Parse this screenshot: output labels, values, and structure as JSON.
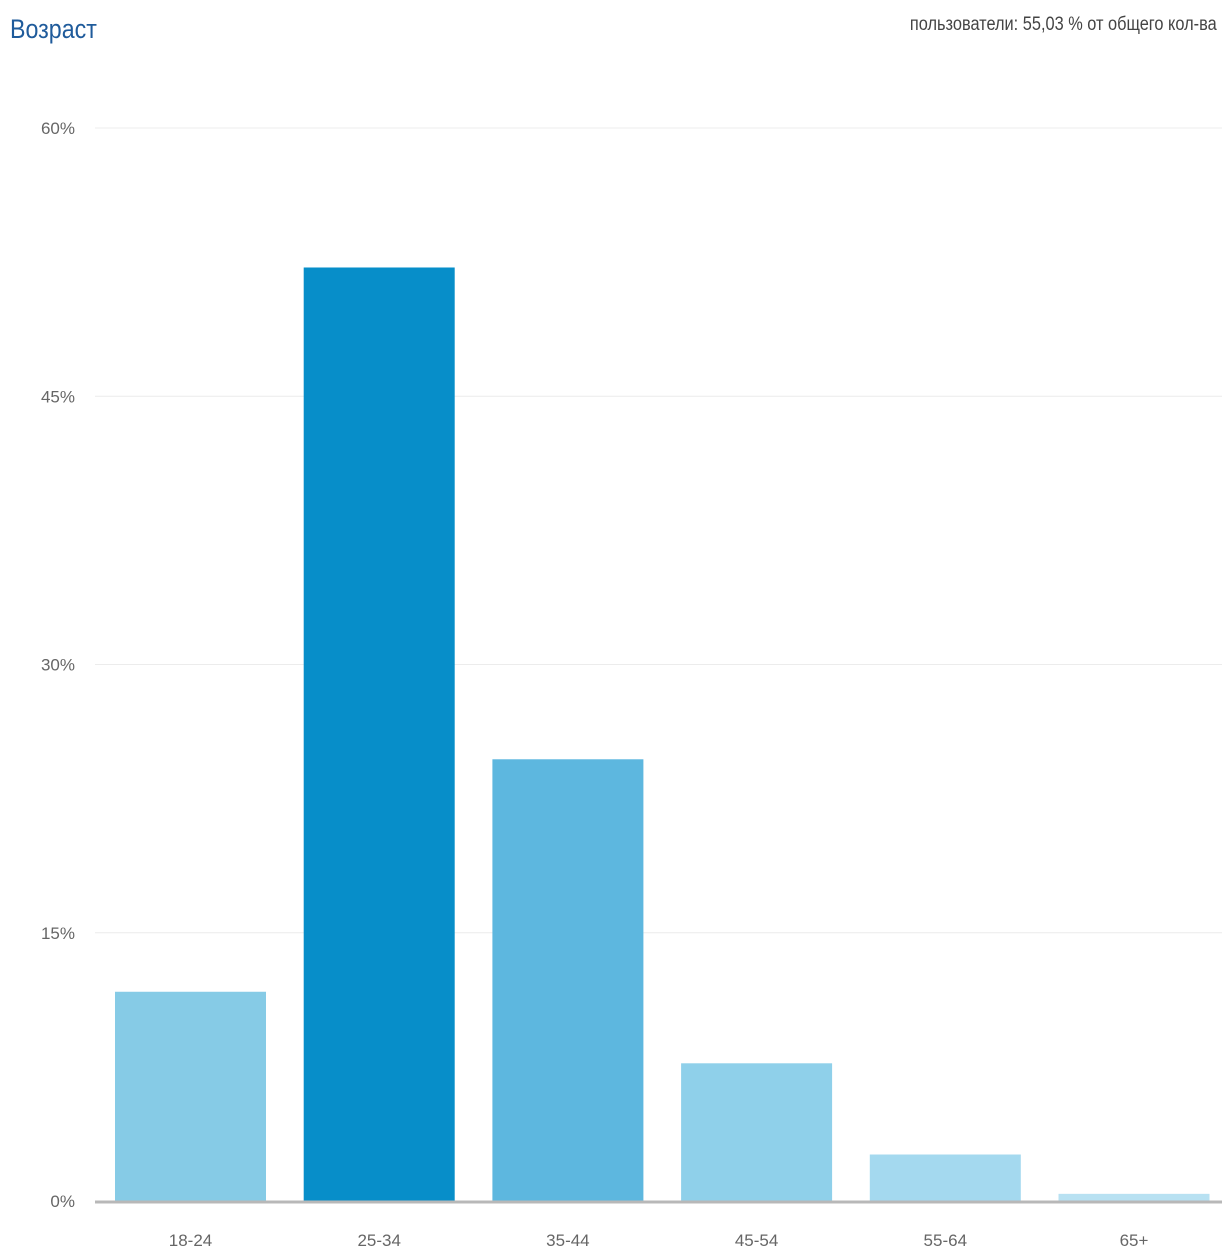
{
  "chart_data": {
    "type": "bar",
    "title": "Возраст",
    "subtitle": "пользователи: 55,03 % от общего кол-ва",
    "categories": [
      "18-24",
      "25-34",
      "35-44",
      "45-54",
      "55-64",
      "65+"
    ],
    "values": [
      11.7,
      52.2,
      24.7,
      7.7,
      2.6,
      0.4
    ],
    "ylim": [
      0,
      60
    ],
    "yticks": [
      0,
      15,
      30,
      45,
      60
    ],
    "ytick_labels": [
      "0%",
      "15%",
      "30%",
      "45%",
      "60%"
    ],
    "grid": true,
    "colors": {
      "bars": [
        "#86cbe6",
        "#078ec9",
        "#5db7df",
        "#8fd0ea",
        "#a4d9ef",
        "#b8e1f2"
      ],
      "gridline": "#ececec",
      "baseline": "#b8b8b8",
      "title": "#1f5b9b",
      "text": "#666666"
    }
  }
}
